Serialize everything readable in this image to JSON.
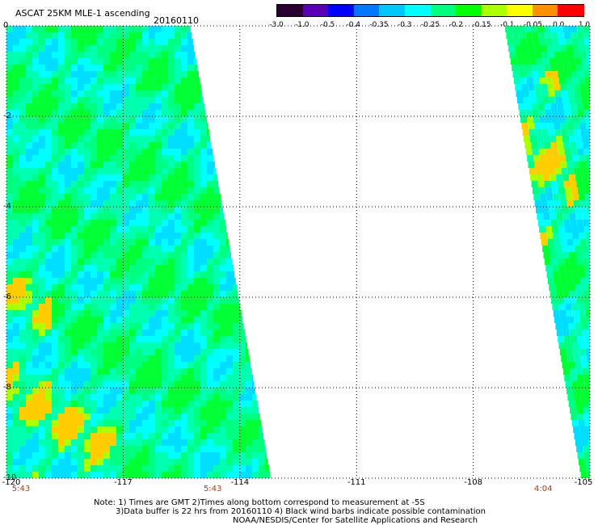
{
  "title": "ASCAT 25KM MLE-1 ascending",
  "date": "20160110",
  "colorbar": {
    "colors": [
      "#2a0030",
      "#5a00b4",
      "#0000ff",
      "#0078ff",
      "#00c8ff",
      "#00ffff",
      "#00ff80",
      "#00ff00",
      "#aaff00",
      "#ffff00",
      "#ff9000",
      "#ff0000"
    ],
    "labels": [
      "-3.0",
      "-1.0",
      "-0.5",
      "-0.4",
      "-0.35",
      "-0.3",
      "-0.25",
      "-0.2",
      "-0.15",
      "-0.1",
      "-0.05",
      "0.0",
      "1.0"
    ]
  },
  "axes": {
    "lon_labels": [
      "-120",
      "-117",
      "-114",
      "-111",
      "-108",
      "-105"
    ],
    "lat_labels": [
      "0",
      "-2",
      "-4",
      "-6",
      "-8",
      "-10"
    ],
    "lon_range": [
      -120,
      -105
    ],
    "lat_range": [
      0,
      -10
    ]
  },
  "times": [
    {
      "label": "5:43",
      "lon": -120
    },
    {
      "label": "5:43",
      "lon": -114.7
    },
    {
      "label": "4:04",
      "lon": -106.2
    }
  ],
  "time_color": "#c83200",
  "notes": {
    "line1": "Note: 1) Times are GMT 2)Times along bottom correspond to measurement at -5S",
    "line2": "3)Data buffer is 22 hrs from 20160110 4) Black wind barbs indicate possible contamination",
    "line3": "NOAA/NESDIS/Center for Satellite Applications and Research"
  }
}
